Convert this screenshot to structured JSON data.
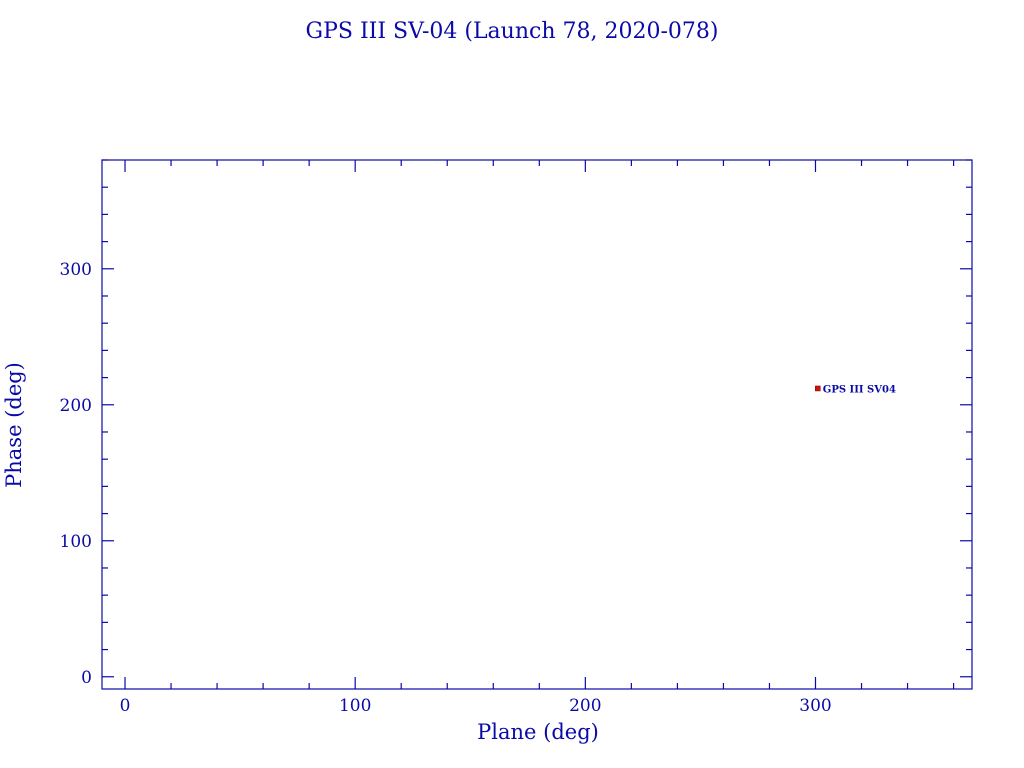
{
  "chart_data": {
    "type": "scatter",
    "title": "GPS III SV-04 (Launch 78, 2020-078)",
    "xlabel": "Plane (deg)",
    "ylabel": "Phase (deg)",
    "xlim": [
      -10,
      368
    ],
    "ylim": [
      -9,
      380
    ],
    "xticks": [
      0,
      100,
      200,
      300
    ],
    "yticks": [
      0,
      100,
      200,
      300
    ],
    "minor_tick_step": 20,
    "grid": false,
    "points": [
      {
        "x": 301,
        "y": 212,
        "label": "GPS III SV04",
        "color": "#d01010"
      }
    ],
    "axis_color": "#0a0aa8"
  }
}
